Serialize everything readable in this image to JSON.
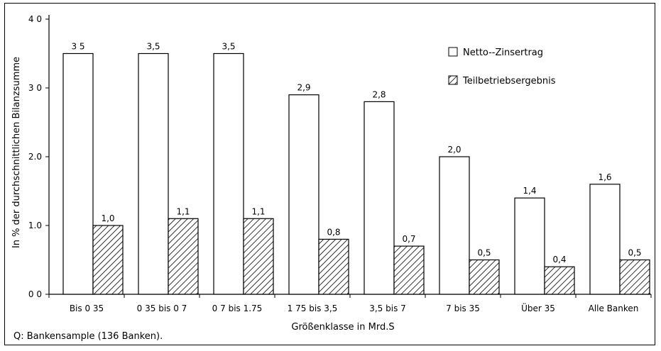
{
  "chart_data": {
    "type": "bar",
    "title": "",
    "xlabel": "Größenklasse in Mrd.S",
    "ylabel": "In % der durchschnittlichen Bilanzsumme",
    "ylim": [
      0,
      4
    ],
    "y_ticks": [
      "0 0",
      "1.0",
      "2.0",
      "3 0",
      "4 0"
    ],
    "grid": false,
    "legend_position": "top-right",
    "categories": [
      "Bis 0 35",
      "0 35 bis 0 7",
      "0 7 bis 1.75",
      "1 75 bis 3,5",
      "3,5 bis 7",
      "7 bis 35",
      "Über 35",
      "Alle Banken"
    ],
    "series": [
      {
        "name": "Netto--Zinsertrag",
        "fill": "white",
        "values": [
          3.5,
          3.5,
          3.5,
          2.9,
          2.8,
          2.0,
          1.4,
          1.6
        ],
        "labels": [
          "3 5",
          "3,5",
          "3,5",
          "2,9",
          "2,8",
          "2,0",
          "1,4",
          "1,6"
        ]
      },
      {
        "name": "Teilbetriebsergebnis",
        "fill": "hatched",
        "values": [
          1.0,
          1.1,
          1.1,
          0.8,
          0.7,
          0.5,
          0.4,
          0.5
        ],
        "labels": [
          "1,0",
          "1,1",
          "1,1",
          "0,8",
          "0,7",
          "0,5",
          "0,4",
          "0,5"
        ]
      }
    ]
  },
  "source_note": "Q: Bankensample (136 Banken)."
}
